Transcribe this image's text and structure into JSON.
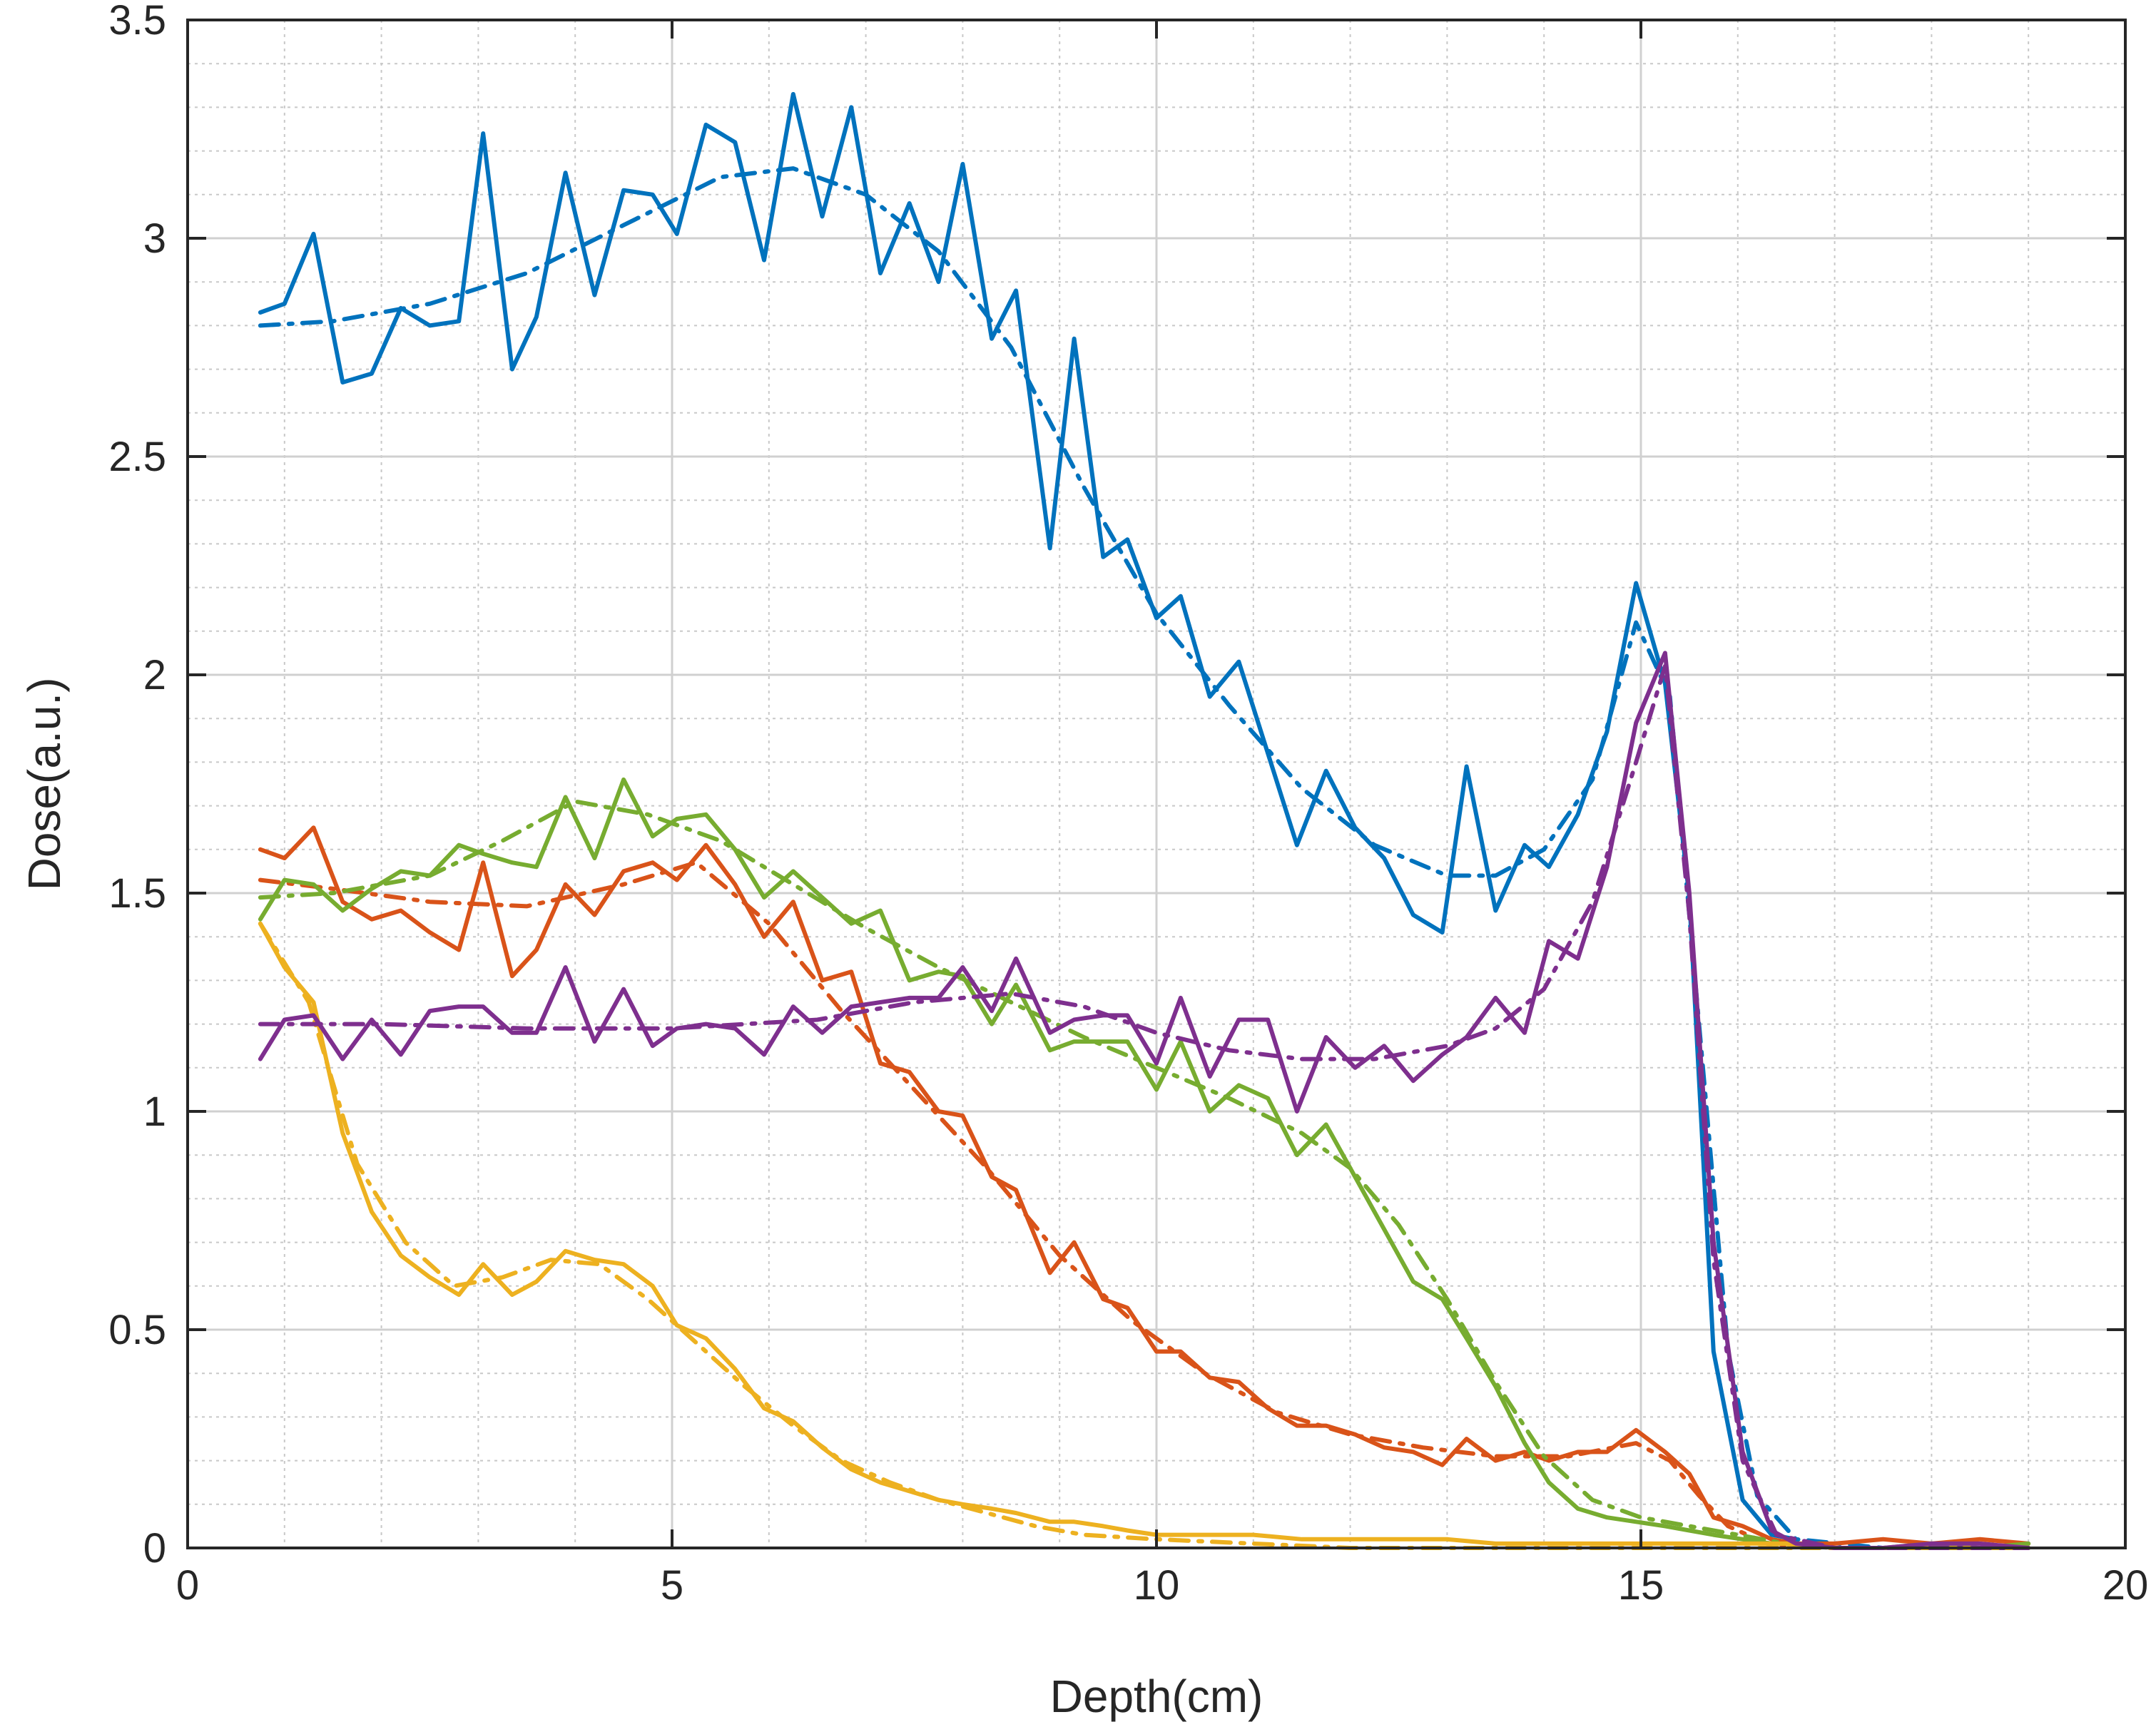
{
  "chart_data": {
    "type": "line",
    "title": "",
    "xlabel": "Depth(cm)",
    "ylabel": "Dose(a.u.)",
    "xlim": [
      0,
      20
    ],
    "ylim": [
      0,
      3.5
    ],
    "xticks": [
      0,
      5,
      10,
      15,
      20
    ],
    "yticks": [
      0,
      0.5,
      1,
      1.5,
      2,
      2.5,
      3,
      3.5
    ],
    "grid": true,
    "minor_grid": true,
    "legend": false,
    "colors": [
      "#0072BD",
      "#D95319",
      "#77AC30",
      "#EDB120",
      "#7E2F8E"
    ],
    "series": [
      {
        "color": "#0072BD",
        "style": "solid",
        "x": [
          0.75,
          1.0,
          1.3,
          1.6,
          1.9,
          2.2,
          2.5,
          2.8,
          3.05,
          3.35,
          3.6,
          3.9,
          4.2,
          4.5,
          4.8,
          5.05,
          5.35,
          5.65,
          5.95,
          6.25,
          6.55,
          6.85,
          7.15,
          7.45,
          7.75,
          8.0,
          8.3,
          8.55,
          8.9,
          9.15,
          9.45,
          9.7,
          10.0,
          10.25,
          10.55,
          10.85,
          11.15,
          11.45,
          11.75,
          12.05,
          12.35,
          12.65,
          12.95,
          13.2,
          13.5,
          13.8,
          14.05,
          14.35,
          14.65,
          14.95,
          15.25,
          15.5,
          15.75,
          16.05,
          16.35,
          16.6
        ],
        "y": [
          2.83,
          2.85,
          3.01,
          2.67,
          2.69,
          2.84,
          2.8,
          2.81,
          3.24,
          2.7,
          2.82,
          3.15,
          2.87,
          3.11,
          3.1,
          3.01,
          3.26,
          3.22,
          2.95,
          3.33,
          3.05,
          3.3,
          2.92,
          3.08,
          2.9,
          3.17,
          2.77,
          2.88,
          2.29,
          2.77,
          2.27,
          2.31,
          2.13,
          2.18,
          1.95,
          2.03,
          1.82,
          1.61,
          1.78,
          1.65,
          1.58,
          1.45,
          1.41,
          1.79,
          1.46,
          1.61,
          1.56,
          1.68,
          1.87,
          2.21,
          1.98,
          1.49,
          0.45,
          0.11,
          0.03,
          0.02
        ]
      },
      {
        "color": "#0072BD",
        "style": "dashdot",
        "x": [
          0.75,
          1.5,
          2.5,
          3.5,
          4.5,
          5.5,
          6.25,
          7.0,
          7.75,
          8.5,
          9.25,
          10.0,
          10.75,
          11.5,
          12.25,
          13.0,
          13.5,
          14.0,
          14.5,
          14.95,
          15.3,
          15.6,
          15.9,
          16.2,
          16.6,
          17.5,
          19.0
        ],
        "y": [
          2.8,
          2.81,
          2.85,
          2.92,
          3.03,
          3.14,
          3.16,
          3.1,
          2.97,
          2.75,
          2.43,
          2.14,
          1.93,
          1.74,
          1.61,
          1.54,
          1.54,
          1.6,
          1.76,
          2.12,
          1.95,
          1.2,
          0.45,
          0.12,
          0.02,
          0.0,
          0.0
        ]
      },
      {
        "color": "#D95319",
        "style": "solid",
        "x": [
          0.75,
          1.0,
          1.3,
          1.6,
          1.9,
          2.2,
          2.5,
          2.8,
          3.05,
          3.35,
          3.6,
          3.9,
          4.2,
          4.5,
          4.8,
          5.05,
          5.35,
          5.65,
          5.95,
          6.25,
          6.55,
          6.85,
          7.15,
          7.45,
          7.75,
          8.0,
          8.3,
          8.55,
          8.9,
          9.15,
          9.45,
          9.7,
          10.0,
          10.25,
          10.55,
          10.85,
          11.15,
          11.45,
          11.75,
          12.05,
          12.35,
          12.65,
          12.95,
          13.2,
          13.5,
          13.8,
          14.05,
          14.35,
          14.65,
          14.95,
          15.25,
          15.5,
          15.75,
          16.05,
          16.35,
          16.6,
          17.0,
          17.5,
          18.0,
          18.5,
          19.0
        ],
        "y": [
          1.6,
          1.58,
          1.65,
          1.48,
          1.44,
          1.46,
          1.41,
          1.37,
          1.57,
          1.31,
          1.37,
          1.52,
          1.45,
          1.55,
          1.57,
          1.53,
          1.61,
          1.52,
          1.4,
          1.48,
          1.3,
          1.32,
          1.11,
          1.09,
          1.0,
          0.99,
          0.85,
          0.82,
          0.63,
          0.7,
          0.57,
          0.55,
          0.45,
          0.45,
          0.39,
          0.38,
          0.32,
          0.28,
          0.28,
          0.26,
          0.23,
          0.22,
          0.19,
          0.25,
          0.2,
          0.22,
          0.2,
          0.22,
          0.22,
          0.27,
          0.22,
          0.17,
          0.07,
          0.05,
          0.02,
          0.01,
          0.01,
          0.02,
          0.01,
          0.02,
          0.01
        ]
      },
      {
        "color": "#D95319",
        "style": "dashdot",
        "x": [
          0.75,
          1.5,
          2.5,
          3.5,
          4.5,
          5.25,
          6.0,
          6.75,
          7.5,
          8.25,
          9.0,
          9.75,
          10.5,
          11.25,
          12.0,
          12.75,
          13.5,
          14.25,
          14.95,
          15.3,
          15.6,
          15.9,
          16.3,
          17.0,
          19.0
        ],
        "y": [
          1.53,
          1.51,
          1.48,
          1.47,
          1.52,
          1.57,
          1.43,
          1.23,
          1.05,
          0.87,
          0.67,
          0.52,
          0.4,
          0.31,
          0.26,
          0.23,
          0.21,
          0.21,
          0.24,
          0.2,
          0.12,
          0.05,
          0.01,
          0.0,
          0.0
        ]
      },
      {
        "color": "#77AC30",
        "style": "solid",
        "x": [
          0.75,
          1.0,
          1.3,
          1.6,
          1.9,
          2.2,
          2.5,
          2.8,
          3.05,
          3.35,
          3.6,
          3.9,
          4.2,
          4.5,
          4.8,
          5.05,
          5.35,
          5.65,
          5.95,
          6.25,
          6.55,
          6.85,
          7.15,
          7.45,
          7.75,
          8.0,
          8.3,
          8.55,
          8.9,
          9.15,
          9.45,
          9.7,
          10.0,
          10.25,
          10.55,
          10.85,
          11.15,
          11.45,
          11.75,
          12.05,
          12.35,
          12.65,
          12.95,
          13.2,
          13.5,
          13.8,
          14.05,
          14.35,
          14.65,
          14.95,
          15.25,
          15.5,
          15.75,
          16.05,
          16.35,
          16.6,
          17.0,
          17.5,
          18.0,
          18.5,
          19.0
        ],
        "y": [
          1.44,
          1.53,
          1.52,
          1.46,
          1.51,
          1.55,
          1.54,
          1.61,
          1.59,
          1.57,
          1.56,
          1.72,
          1.58,
          1.76,
          1.63,
          1.67,
          1.68,
          1.6,
          1.49,
          1.55,
          1.49,
          1.43,
          1.46,
          1.3,
          1.32,
          1.31,
          1.2,
          1.29,
          1.14,
          1.16,
          1.16,
          1.16,
          1.05,
          1.16,
          1.0,
          1.06,
          1.03,
          0.9,
          0.97,
          0.85,
          0.73,
          0.61,
          0.57,
          0.48,
          0.37,
          0.24,
          0.15,
          0.09,
          0.07,
          0.06,
          0.05,
          0.04,
          0.03,
          0.02,
          0.01,
          0.01,
          0.0,
          0.0,
          0.01,
          0.0,
          0.01
        ]
      },
      {
        "color": "#77AC30",
        "style": "dashdot",
        "x": [
          0.75,
          1.5,
          2.5,
          3.25,
          4.0,
          4.75,
          5.5,
          6.25,
          7.0,
          7.75,
          8.5,
          9.25,
          10.0,
          10.75,
          11.5,
          12.0,
          12.5,
          13.0,
          13.5,
          14.0,
          14.5,
          15.0,
          15.5,
          16.0,
          16.5,
          17.0,
          19.0
        ],
        "y": [
          1.49,
          1.5,
          1.54,
          1.62,
          1.71,
          1.68,
          1.62,
          1.52,
          1.42,
          1.33,
          1.25,
          1.17,
          1.1,
          1.03,
          0.95,
          0.87,
          0.74,
          0.57,
          0.38,
          0.21,
          0.11,
          0.07,
          0.05,
          0.03,
          0.01,
          0.0,
          0.0
        ]
      },
      {
        "color": "#EDB120",
        "style": "solid",
        "x": [
          0.75,
          1.0,
          1.3,
          1.6,
          1.9,
          2.2,
          2.5,
          2.8,
          3.05,
          3.35,
          3.6,
          3.9,
          4.2,
          4.5,
          4.8,
          5.05,
          5.35,
          5.65,
          5.95,
          6.25,
          6.55,
          6.85,
          7.15,
          7.45,
          7.75,
          8.0,
          8.3,
          8.55,
          8.9,
          9.15,
          9.45,
          9.7,
          10.0,
          10.5,
          11.0,
          11.5,
          12.0,
          12.5,
          13.0,
          13.5,
          14.0,
          14.5,
          15.0,
          15.5,
          16.0,
          16.5,
          17.0,
          18.0,
          19.0
        ],
        "y": [
          1.43,
          1.33,
          1.25,
          0.95,
          0.77,
          0.67,
          0.62,
          0.58,
          0.65,
          0.58,
          0.61,
          0.68,
          0.66,
          0.65,
          0.6,
          0.51,
          0.48,
          0.41,
          0.32,
          0.29,
          0.23,
          0.18,
          0.15,
          0.13,
          0.11,
          0.1,
          0.09,
          0.08,
          0.06,
          0.06,
          0.05,
          0.04,
          0.03,
          0.03,
          0.03,
          0.02,
          0.02,
          0.02,
          0.02,
          0.01,
          0.01,
          0.01,
          0.01,
          0.01,
          0.01,
          0.01,
          0.0,
          0.0,
          0.0
        ]
      },
      {
        "color": "#EDB120",
        "style": "dashdot",
        "x": [
          0.75,
          1.25,
          1.75,
          2.25,
          2.75,
          3.25,
          3.75,
          4.25,
          4.75,
          5.25,
          5.75,
          6.25,
          6.75,
          7.25,
          7.75,
          8.25,
          8.75,
          9.25,
          10.0,
          11.0,
          12.0,
          13.0,
          15.0,
          19.0
        ],
        "y": [
          1.43,
          1.25,
          0.88,
          0.7,
          0.6,
          0.62,
          0.66,
          0.65,
          0.57,
          0.47,
          0.37,
          0.28,
          0.2,
          0.15,
          0.11,
          0.08,
          0.05,
          0.03,
          0.02,
          0.01,
          0.0,
          0.0,
          0.0,
          0.0
        ]
      },
      {
        "color": "#7E2F8E",
        "style": "solid",
        "x": [
          0.75,
          1.0,
          1.3,
          1.6,
          1.9,
          2.2,
          2.5,
          2.8,
          3.05,
          3.35,
          3.6,
          3.9,
          4.2,
          4.5,
          4.8,
          5.05,
          5.35,
          5.65,
          5.95,
          6.25,
          6.55,
          6.85,
          7.15,
          7.45,
          7.75,
          8.0,
          8.3,
          8.55,
          8.9,
          9.15,
          9.45,
          9.7,
          10.0,
          10.25,
          10.55,
          10.85,
          11.15,
          11.45,
          11.75,
          12.05,
          12.35,
          12.65,
          12.95,
          13.2,
          13.5,
          13.8,
          14.05,
          14.35,
          14.65,
          14.95,
          15.25,
          15.5,
          15.75,
          16.05,
          16.35,
          16.6,
          17.0,
          17.5,
          18.0,
          18.5,
          19.0
        ],
        "y": [
          1.12,
          1.21,
          1.22,
          1.12,
          1.21,
          1.13,
          1.23,
          1.24,
          1.24,
          1.18,
          1.18,
          1.33,
          1.16,
          1.28,
          1.15,
          1.19,
          1.2,
          1.19,
          1.13,
          1.24,
          1.18,
          1.24,
          1.25,
          1.26,
          1.26,
          1.33,
          1.23,
          1.35,
          1.18,
          1.21,
          1.22,
          1.22,
          1.11,
          1.26,
          1.08,
          1.21,
          1.21,
          1.0,
          1.17,
          1.1,
          1.15,
          1.07,
          1.13,
          1.17,
          1.26,
          1.18,
          1.39,
          1.35,
          1.56,
          1.89,
          2.05,
          1.5,
          0.7,
          0.22,
          0.04,
          0.01,
          0.0,
          0.0,
          0.01,
          0.01,
          0.0
        ]
      },
      {
        "color": "#7E2F8E",
        "style": "dashdot",
        "x": [
          0.75,
          2.0,
          3.5,
          5.0,
          6.5,
          7.5,
          8.5,
          9.25,
          10.0,
          10.75,
          11.5,
          12.25,
          13.0,
          13.5,
          14.0,
          14.5,
          14.95,
          15.25,
          15.5,
          15.75,
          16.05,
          16.4,
          17.0,
          19.0
        ],
        "y": [
          1.2,
          1.2,
          1.19,
          1.19,
          1.21,
          1.25,
          1.27,
          1.24,
          1.18,
          1.14,
          1.12,
          1.12,
          1.15,
          1.19,
          1.28,
          1.48,
          1.8,
          2.02,
          1.45,
          0.66,
          0.2,
          0.03,
          0.0,
          0.0
        ]
      }
    ]
  }
}
